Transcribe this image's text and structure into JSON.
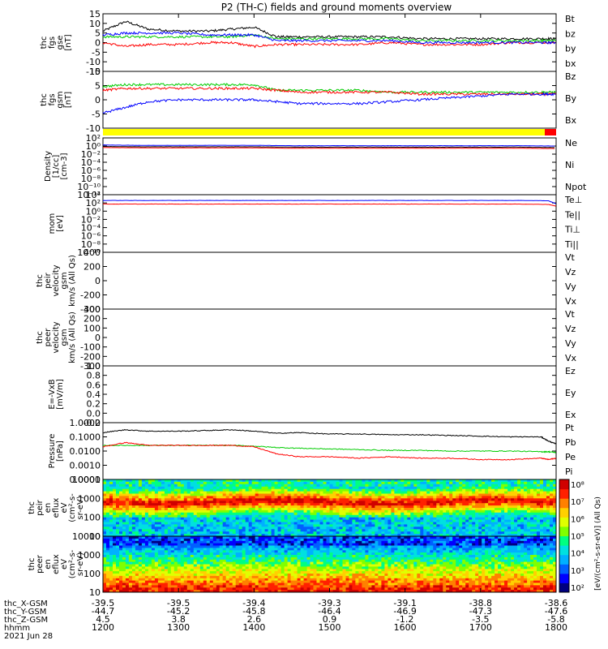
{
  "title": "P2 (TH-C) fields and ground moments overview",
  "chart_data": [
    {
      "type": "line",
      "panel_id": "fgs_gse",
      "ylabel_lines": [
        "thc",
        "fgs",
        "gse",
        "[nT]"
      ],
      "ylim": [
        -15,
        15
      ],
      "yticks": [
        "15",
        "10",
        "5",
        "0",
        "-5",
        "-10",
        "-15"
      ],
      "legend": [
        {
          "label": "Bt",
          "color": "#000000"
        },
        {
          "label": "bz",
          "color": "#ff0000"
        },
        {
          "label": "by",
          "color": "#00cc00"
        },
        {
          "label": "bx",
          "color": "#0000ff"
        }
      ],
      "series": [
        {
          "name": "Bt",
          "color": "#000000",
          "x": [
            12.0,
            12.3,
            12.6,
            13.0,
            13.4,
            13.7,
            14.0,
            14.3,
            14.6,
            15.0,
            15.4,
            15.8,
            16.2,
            16.6,
            17.0,
            17.4,
            17.8,
            18.0
          ],
          "y": [
            6,
            11,
            7,
            6,
            6,
            7,
            8,
            3,
            3,
            3,
            3,
            3,
            2,
            2,
            2,
            2,
            2,
            2
          ]
        },
        {
          "name": "bz",
          "color": "#ff0000",
          "x": [
            12.0,
            12.3,
            12.6,
            13.0,
            13.4,
            13.7,
            14.0,
            14.3,
            14.6,
            15.0,
            15.4,
            15.8,
            16.2,
            16.6,
            17.0,
            17.4,
            17.8,
            18.0
          ],
          "y": [
            0,
            -2,
            -1,
            -1,
            0,
            0,
            -2,
            -1,
            -1,
            -1,
            -1,
            0,
            -1,
            -1,
            -1,
            0,
            0,
            0
          ]
        },
        {
          "name": "by",
          "color": "#00cc00",
          "x": [
            12.0,
            12.3,
            12.6,
            13.0,
            13.4,
            13.7,
            14.0,
            14.3,
            14.6,
            15.0,
            15.4,
            15.8,
            16.2,
            16.6,
            17.0,
            17.4,
            17.8,
            18.0
          ],
          "y": [
            3,
            3,
            3,
            3,
            3,
            3,
            4,
            2,
            2,
            2,
            2,
            2,
            1,
            1,
            1,
            1,
            1,
            1
          ]
        },
        {
          "name": "bx",
          "color": "#0000ff",
          "x": [
            12.0,
            12.3,
            12.6,
            13.0,
            13.4,
            13.7,
            14.0,
            14.3,
            14.6,
            15.0,
            15.4,
            15.8,
            16.2,
            16.6,
            17.0,
            17.4,
            17.8,
            18.0
          ],
          "y": [
            4,
            5,
            5,
            5,
            4,
            4,
            4,
            1,
            1,
            1,
            1,
            1,
            0,
            0,
            0,
            0,
            0,
            0
          ]
        }
      ]
    },
    {
      "type": "line",
      "panel_id": "fgs_gsm",
      "ylabel_lines": [
        "thc",
        "fgs",
        "gsm",
        "[nT]"
      ],
      "ylim": [
        -15,
        15
      ],
      "yticks": [
        "10",
        "5",
        "0",
        "-5",
        "-10"
      ],
      "legend": [
        {
          "label": "Bz",
          "color": "#ff0000"
        },
        {
          "label": "By",
          "color": "#00cc00"
        },
        {
          "label": "Bx",
          "color": "#0000ff"
        }
      ],
      "series": [
        {
          "name": "By",
          "color": "#00cc00",
          "x": [
            12.0,
            12.3,
            12.6,
            13.0,
            13.4,
            13.7,
            14.0,
            14.3,
            14.6,
            15.0,
            15.4,
            15.8,
            16.2,
            16.6,
            17.0,
            17.4,
            17.8,
            18.0
          ],
          "y": [
            7,
            8,
            8,
            8,
            8,
            8,
            8,
            5,
            5,
            5,
            5,
            4,
            4,
            4,
            4,
            4,
            4,
            4
          ]
        },
        {
          "name": "Bz",
          "color": "#ff0000",
          "x": [
            12.0,
            12.3,
            12.6,
            13.0,
            13.4,
            13.7,
            14.0,
            14.3,
            14.6,
            15.0,
            15.4,
            15.8,
            16.2,
            16.6,
            17.0,
            17.4,
            17.8,
            18.0
          ],
          "y": [
            5,
            6,
            6,
            6,
            6,
            6,
            6,
            5,
            4,
            4,
            4,
            4,
            3,
            3,
            3,
            3,
            3,
            3
          ]
        },
        {
          "name": "Bx",
          "color": "#0000ff",
          "x": [
            12.0,
            12.3,
            12.6,
            13.0,
            13.4,
            13.7,
            14.0,
            14.3,
            14.6,
            15.0,
            15.4,
            15.8,
            16.2,
            16.6,
            17.0,
            17.4,
            17.8,
            18.0
          ],
          "y": [
            -7,
            -4,
            -1,
            0,
            0,
            0,
            0,
            -1,
            -2,
            -2,
            -2,
            -1,
            0,
            1,
            2,
            3,
            3,
            3
          ]
        }
      ]
    },
    {
      "type": "line",
      "panel_id": "density",
      "ylabel_lines": [
        "Density",
        "[1/cc]",
        "[cm-3]"
      ],
      "yscale": "log",
      "ylim_log10": [
        -13,
        3
      ],
      "yticks": [
        "10²",
        "10⁰",
        "10⁻²",
        "10⁻⁴",
        "10⁻⁶",
        "10⁻⁸",
        "10⁻¹⁰",
        "10⁻¹²"
      ],
      "legend": [
        {
          "label": "Ne",
          "color": "#ff0000"
        },
        {
          "label": "Ni",
          "color": "#000000"
        },
        {
          "label": "Npot",
          "color": "#0000ff"
        }
      ],
      "series": [
        {
          "name": "Ni",
          "color": "#000000",
          "x": [
            12.0,
            12.5,
            13.0,
            13.5,
            14.0,
            14.5,
            15.0,
            15.5,
            16.0,
            16.5,
            17.0,
            17.5,
            18.0
          ],
          "y_log10": [
            0.6,
            0.5,
            0.5,
            0.5,
            0.5,
            0.4,
            0.4,
            0.4,
            0.4,
            0.4,
            0.4,
            0.4,
            0.3
          ]
        },
        {
          "name": "Npot",
          "color": "#0000ff",
          "x": [
            12.0,
            12.5,
            13.0,
            13.5,
            14.0,
            14.5,
            15.0,
            15.5,
            16.0,
            16.5,
            17.0,
            17.5,
            18.0
          ],
          "y_log10": [
            1.0,
            0.9,
            0.9,
            0.9,
            0.9,
            0.8,
            0.8,
            0.8,
            0.8,
            0.8,
            0.8,
            0.8,
            0.7
          ]
        },
        {
          "name": "Ne",
          "color": "#ff0000",
          "x": [
            12.0,
            12.5,
            13.0,
            13.5,
            14.0,
            14.5,
            15.0,
            15.5,
            16.0,
            16.5,
            17.0,
            17.5,
            18.0
          ],
          "y_log10": [
            0.3,
            0.2,
            0.2,
            0.2,
            0.2,
            0.1,
            0.1,
            0.1,
            0.1,
            0.1,
            0.1,
            0.1,
            0.0
          ]
        }
      ]
    },
    {
      "type": "line",
      "panel_id": "temperature",
      "ylabel_lines": [
        "mom",
        "[eV]"
      ],
      "yscale": "log",
      "ylim_log10": [
        -11,
        5
      ],
      "yticks": [
        "10⁴",
        "10²",
        "10⁰",
        "10⁻²",
        "10⁻⁴",
        "10⁻⁶",
        "10⁻⁸",
        "10⁻¹⁰"
      ],
      "legend": [
        {
          "label": "Te⊥",
          "color": "#ff0000"
        },
        {
          "label": "Te||",
          "color": "#000000"
        },
        {
          "label": "Ti⊥",
          "color": "#0000ff"
        },
        {
          "label": "Ti||",
          "color": "#00cc00"
        }
      ],
      "series": [
        {
          "name": "Ti⊥",
          "color": "#0000ff",
          "x": [
            12.0,
            12.5,
            13.0,
            13.5,
            14.0,
            14.5,
            15.0,
            15.5,
            16.0,
            16.5,
            17.0,
            17.5,
            17.9,
            18.0
          ],
          "y_log10": [
            3.4,
            3.4,
            3.4,
            3.4,
            3.4,
            3.4,
            3.4,
            3.4,
            3.4,
            3.4,
            3.4,
            3.4,
            3.3,
            2.5
          ]
        },
        {
          "name": "Te⊥",
          "color": "#ff0000",
          "x": [
            12.0,
            12.5,
            13.0,
            13.5,
            14.0,
            14.5,
            15.0,
            15.5,
            16.0,
            16.5,
            17.0,
            17.5,
            17.9,
            18.0
          ],
          "y_log10": [
            2.4,
            2.4,
            2.4,
            2.4,
            2.4,
            2.4,
            2.4,
            2.4,
            2.4,
            2.4,
            2.4,
            2.4,
            2.3,
            1.8
          ]
        }
      ]
    },
    {
      "type": "line",
      "panel_id": "peir_velocity",
      "ylabel_lines": [
        "thc",
        "peir",
        "velocity",
        "gsm",
        "km/s (All Qs)"
      ],
      "ylim": [
        -400,
        400
      ],
      "yticks": [
        "400",
        "200",
        "0",
        "-200",
        "-400"
      ],
      "legend": [
        {
          "label": "Vt",
          "color": "#000000"
        },
        {
          "label": "Vz",
          "color": "#ff0000"
        },
        {
          "label": "Vy",
          "color": "#00cc00"
        },
        {
          "label": "Vx",
          "color": "#0000ff"
        }
      ],
      "series": []
    },
    {
      "type": "line",
      "panel_id": "peer_velocity",
      "ylabel_lines": [
        "thc",
        "peer",
        "velocity",
        "gsm",
        "km/s (All Qs)"
      ],
      "ylim": [
        -300,
        300
      ],
      "yticks": [
        "300",
        "200",
        "100",
        "0",
        "-100",
        "-200",
        "-300"
      ],
      "legend": [
        {
          "label": "Vt",
          "color": "#000000"
        },
        {
          "label": "Vz",
          "color": "#ff0000"
        },
        {
          "label": "Vy",
          "color": "#00cc00"
        },
        {
          "label": "Vx",
          "color": "#0000ff"
        }
      ],
      "series": []
    },
    {
      "type": "line",
      "panel_id": "efield",
      "ylabel_lines": [
        "E=-VxB",
        "[mV/m]"
      ],
      "ylim": [
        -0.2,
        1.0
      ],
      "yticks": [
        "1.0",
        "0.8",
        "0.6",
        "0.4",
        "0.2",
        "0.0",
        "-0.2"
      ],
      "legend": [
        {
          "label": "Ez",
          "color": "#ff0000"
        },
        {
          "label": "Ey",
          "color": "#00cc00"
        },
        {
          "label": "Ex",
          "color": "#0000ff"
        }
      ],
      "series": []
    },
    {
      "type": "line",
      "panel_id": "pressure",
      "ylabel_lines": [
        "Pressure",
        "[nPa]"
      ],
      "yscale": "log",
      "ylim_log10": [
        -4,
        0
      ],
      "yticks": [
        "1.0000",
        "0.1000",
        "0.0100",
        "0.0010",
        "0.0001"
      ],
      "legend": [
        {
          "label": "Pt",
          "color": "#000000"
        },
        {
          "label": "Pb",
          "color": "#ff0000"
        },
        {
          "label": "Pe",
          "color": "#00cc00"
        },
        {
          "label": "Pi",
          "color": "#0000ff"
        }
      ],
      "series": [
        {
          "name": "Pt",
          "color": "#000000",
          "x": [
            12.0,
            12.3,
            12.6,
            13.0,
            13.4,
            13.7,
            14.0,
            14.3,
            14.6,
            15.0,
            15.4,
            15.8,
            16.2,
            16.6,
            17.0,
            17.4,
            17.8,
            17.9,
            18.0
          ],
          "y_log10": [
            -0.7,
            -0.5,
            -0.6,
            -0.6,
            -0.55,
            -0.5,
            -0.6,
            -0.75,
            -0.7,
            -0.8,
            -0.8,
            -0.85,
            -0.85,
            -0.9,
            -0.95,
            -1.0,
            -1.0,
            -1.3,
            -1.5
          ]
        },
        {
          "name": "Pe",
          "color": "#00cc00",
          "x": [
            12.0,
            12.3,
            12.6,
            13.0,
            13.4,
            13.7,
            14.0,
            14.3,
            14.6,
            15.0,
            15.4,
            15.8,
            16.2,
            16.6,
            17.0,
            17.4,
            17.8,
            17.9,
            18.0
          ],
          "y_log10": [
            -1.6,
            -1.6,
            -1.6,
            -1.6,
            -1.6,
            -1.6,
            -1.65,
            -1.75,
            -1.8,
            -1.85,
            -1.9,
            -1.95,
            -1.95,
            -2.0,
            -2.0,
            -2.0,
            -2.05,
            -2.05,
            -2.1
          ]
        },
        {
          "name": "Pb",
          "color": "#ff0000",
          "x": [
            12.0,
            12.3,
            12.6,
            13.0,
            13.4,
            13.7,
            14.0,
            14.3,
            14.6,
            15.0,
            15.4,
            15.8,
            16.2,
            16.6,
            17.0,
            17.4,
            17.8,
            17.9,
            18.0
          ],
          "y_log10": [
            -1.7,
            -1.4,
            -1.6,
            -1.6,
            -1.6,
            -1.6,
            -1.7,
            -2.2,
            -2.4,
            -2.4,
            -2.5,
            -2.4,
            -2.5,
            -2.5,
            -2.6,
            -2.6,
            -2.5,
            -2.6,
            -2.5
          ]
        }
      ]
    },
    {
      "type": "heatmap",
      "panel_id": "peir_en_eflux",
      "ylabel_lines": [
        "thc",
        "peir",
        "en",
        "eflux",
        "eV",
        "(cm²-s-",
        "sr-eV)"
      ],
      "yscale": "log",
      "yticks": [
        "10000",
        "1000",
        "100",
        "10"
      ],
      "colorbar_label": "[eV/(cm²-s-sr-eV)] (All Qs)",
      "colorbar_ticks": [
        "10⁸",
        "10⁷",
        "10⁶",
        "10⁵",
        "10⁴",
        "10³",
        "10²"
      ]
    },
    {
      "type": "heatmap",
      "panel_id": "peer_en_eflux",
      "ylabel_lines": [
        "thc",
        "peer",
        "en",
        "eflux",
        "eV",
        "(cm²-s-",
        "sr-eV)"
      ],
      "yscale": "log",
      "yticks": [
        "10000",
        "1000",
        "100",
        "10"
      ],
      "colorbar_label": "[eV/(cm²-s-sr-eV)] (All Qs)",
      "colorbar_ticks": [
        "10⁸",
        "10⁷",
        "10⁶",
        "10⁵",
        "10⁴",
        "10³",
        "10²"
      ]
    }
  ],
  "x_axis": {
    "row_labels": [
      "thc_X-GSM",
      "thc_Y-GSM",
      "thc_Z-GSM",
      "hhmm",
      "2021 Jun 28"
    ],
    "columns": [
      {
        "x": "-39.5",
        "y": "-44.7",
        "z": "4.5",
        "t": "1200"
      },
      {
        "x": "-39.5",
        "y": "-45.2",
        "z": "3.8",
        "t": "1300"
      },
      {
        "x": "-39.4",
        "y": "-45.8",
        "z": "2.6",
        "t": "1400"
      },
      {
        "x": "-39.3",
        "y": "-46.4",
        "z": "0.9",
        "t": "1500"
      },
      {
        "x": "-39.1",
        "y": "-46.9",
        "z": "-1.2",
        "t": "1600"
      },
      {
        "x": "-38.8",
        "y": "-47.3",
        "z": "-3.5",
        "t": "1700"
      },
      {
        "x": "-38.6",
        "y": "-47.6",
        "z": "-5.8",
        "t": "1800"
      }
    ],
    "range_hours": [
      12,
      18
    ]
  },
  "colors": {
    "black": "#000000",
    "red": "#ff0000",
    "green": "#00cc00",
    "blue": "#0000ff",
    "status_bar": "#ffff00"
  }
}
